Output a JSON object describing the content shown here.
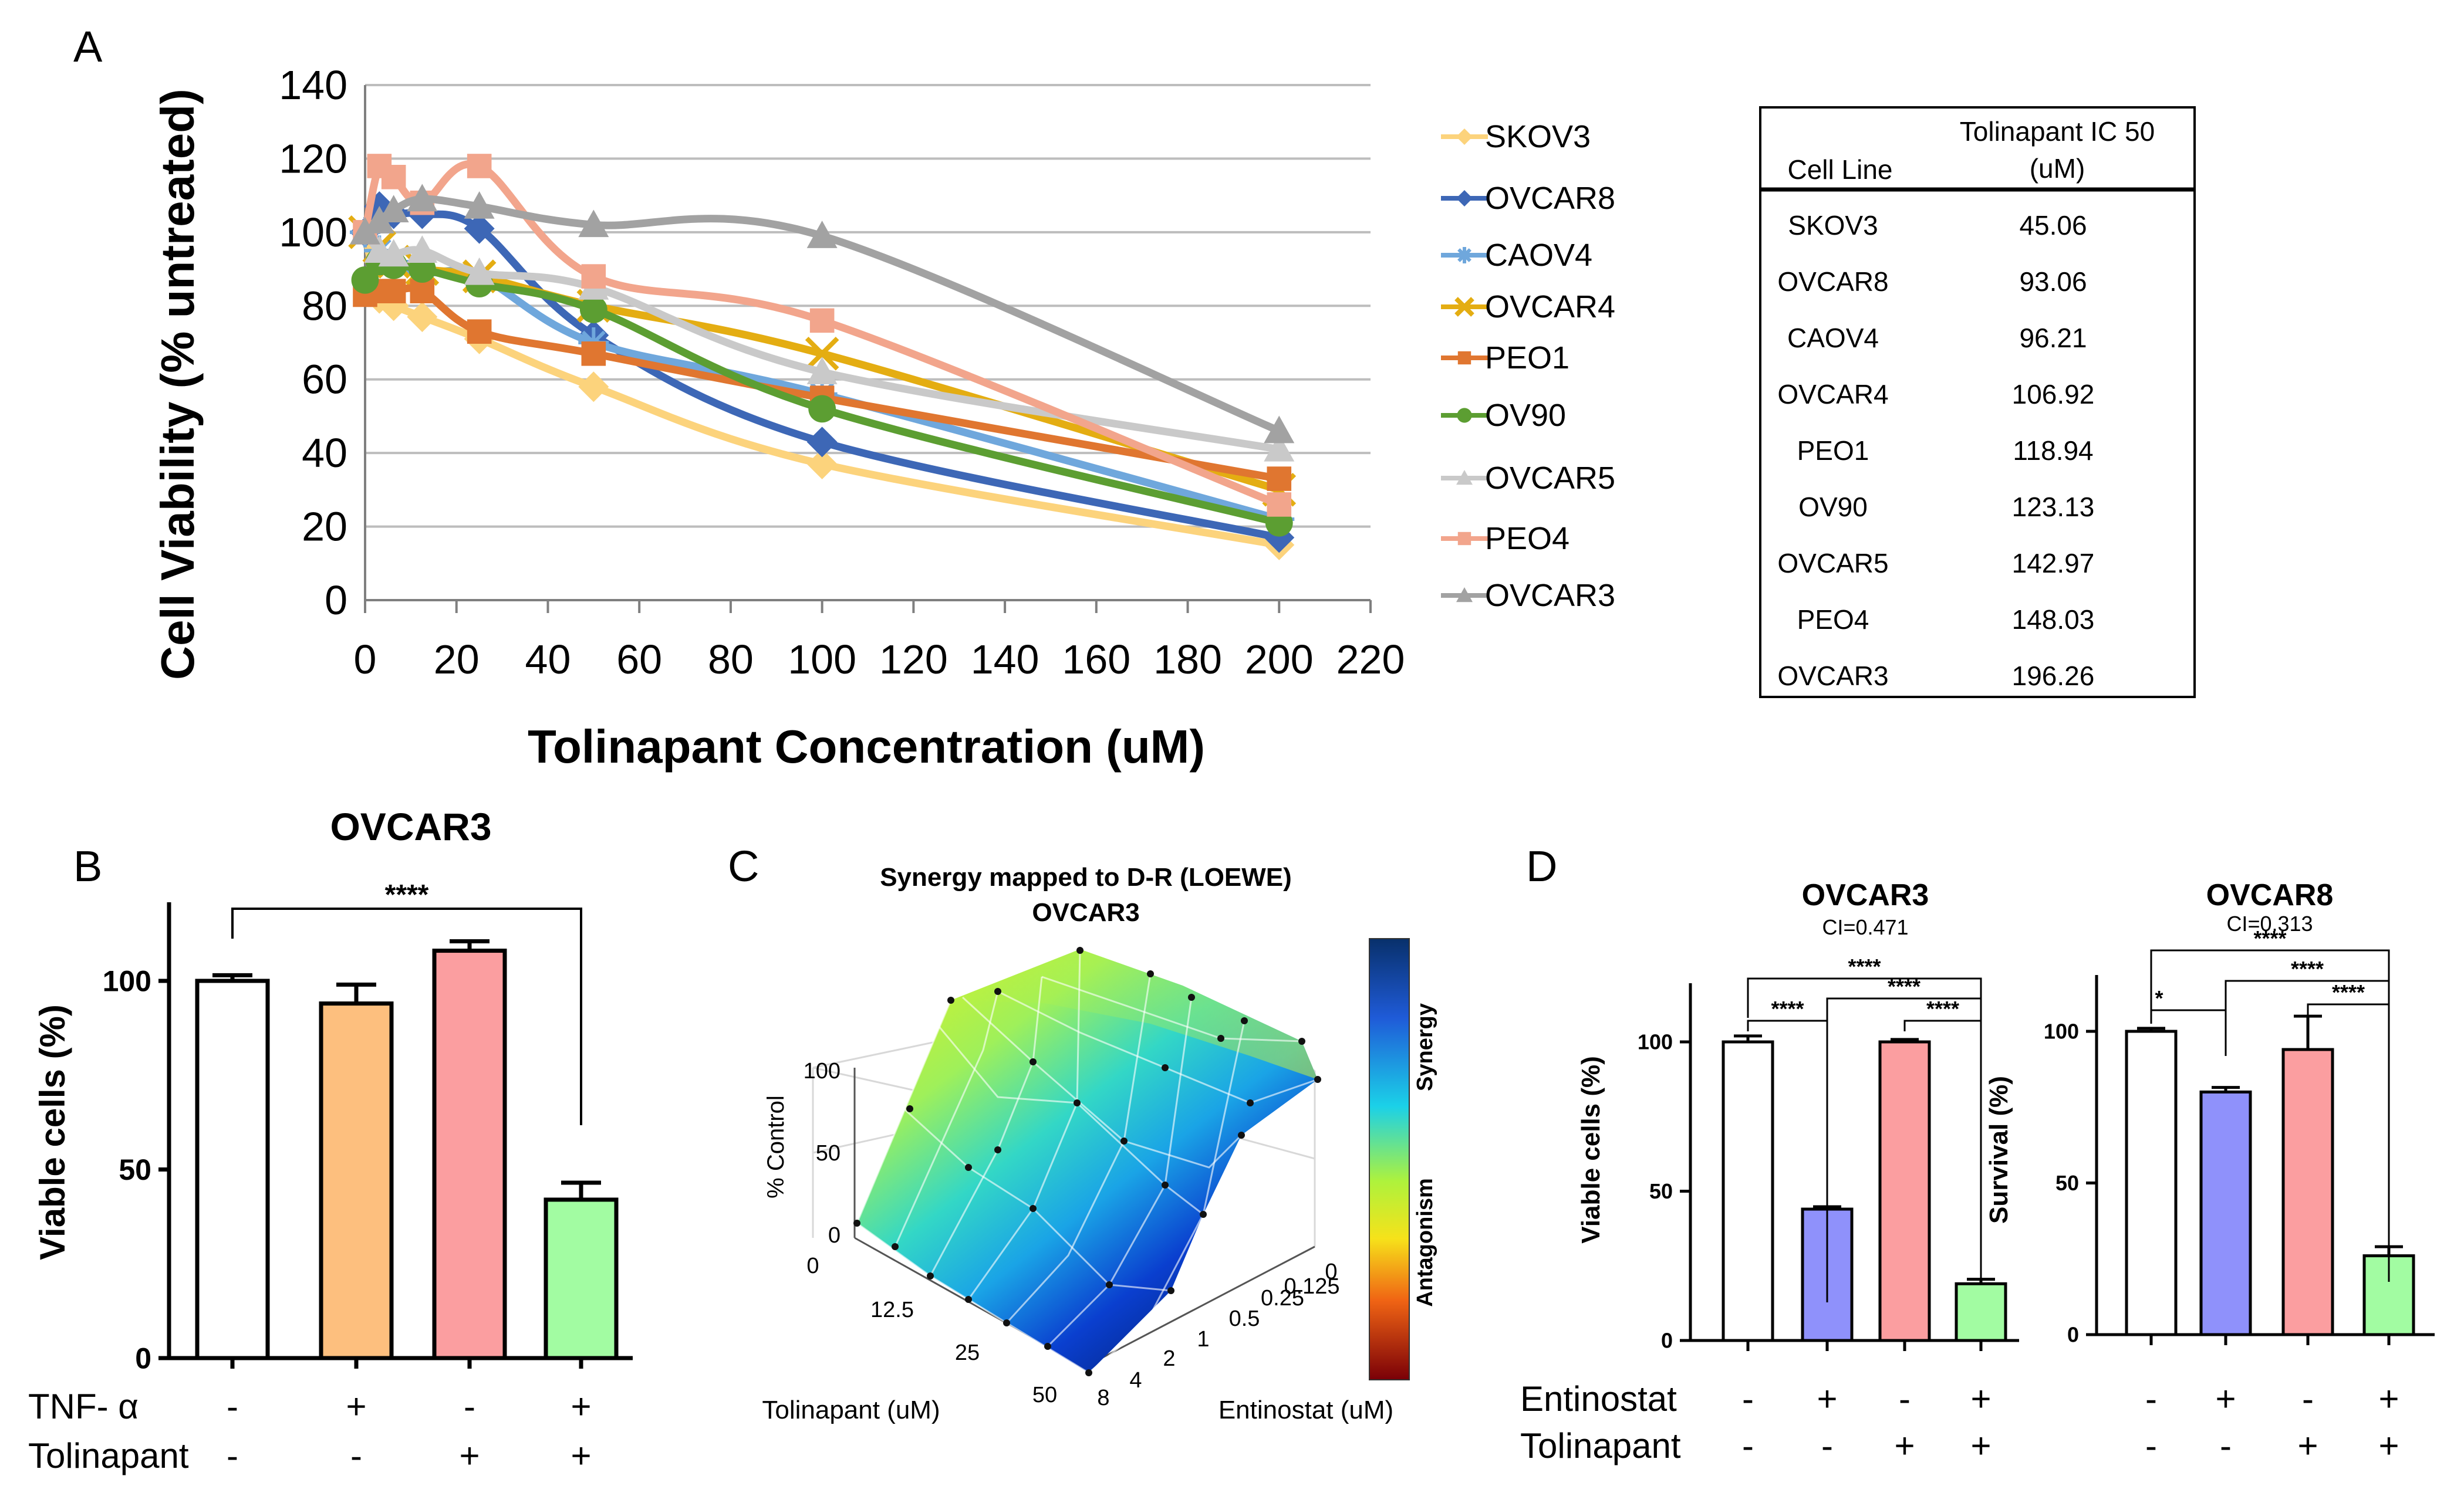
{
  "panel_labels": {
    "a": "A",
    "b": "B",
    "c": "C",
    "d": "D"
  },
  "colors": {
    "SKOV3": "#fcd37c",
    "OVCAR8": "#3d67b6",
    "CAOV4": "#6fa7dc",
    "OVCAR4": "#e4ad12",
    "PEO1": "#e07630",
    "OV90": "#5c9e32",
    "OVCAR5": "#c9c9c9",
    "PEO4": "#f2a58c",
    "OVCAR3": "#a2a2a2",
    "bar_white": "#ffffff",
    "bar_orange": "#fdbf7e",
    "bar_red": "#fb9ea0",
    "bar_green": "#a2fca2",
    "bar_blue": "#8f91fb"
  },
  "chart_data": [
    {
      "id": "A",
      "type": "line",
      "xlabel": "Tolinapant Concentration (uM)",
      "ylabel": "Cell Viability (% untreated)",
      "xlim": [
        0,
        220
      ],
      "ylim": [
        0,
        140
      ],
      "xticks": [
        0,
        20,
        40,
        60,
        80,
        100,
        120,
        140,
        160,
        180,
        200,
        220
      ],
      "yticks": [
        0,
        20,
        40,
        60,
        80,
        100,
        120,
        140
      ],
      "grid": true,
      "x": [
        0,
        3.125,
        6.25,
        12.5,
        25,
        50,
        100,
        200
      ],
      "series": [
        {
          "name": "SKOV3",
          "marker": "diamond",
          "values": [
            100,
            82,
            80,
            77,
            71,
            58,
            37,
            15
          ]
        },
        {
          "name": "OVCAR8",
          "marker": "diamond",
          "values": [
            100,
            107,
            105,
            105,
            101,
            72,
            43,
            17
          ]
        },
        {
          "name": "CAOV4",
          "marker": "star",
          "values": [
            100,
            95,
            92,
            89,
            88,
            70,
            56,
            22
          ]
        },
        {
          "name": "OVCAR4",
          "marker": "x",
          "values": [
            100,
            96,
            92,
            90,
            88,
            80,
            67,
            30
          ]
        },
        {
          "name": "PEO1",
          "marker": "square",
          "values": [
            83,
            84,
            84,
            84,
            73,
            67,
            55,
            33
          ]
        },
        {
          "name": "OV90",
          "marker": "circle",
          "values": [
            87,
            92,
            91,
            90,
            86,
            79,
            52,
            21
          ]
        },
        {
          "name": "OVCAR5",
          "marker": "triangle",
          "values": [
            100,
            95,
            94,
            95,
            89,
            85,
            62,
            41
          ]
        },
        {
          "name": "PEO4",
          "marker": "square",
          "values": [
            100,
            118,
            115,
            108,
            118,
            88,
            76,
            26
          ]
        },
        {
          "name": "OVCAR3",
          "marker": "triangle",
          "values": [
            100,
            103,
            106,
            109,
            107,
            102,
            99,
            46
          ]
        }
      ],
      "table": {
        "headers": [
          "Cell Line",
          "Tolinapant IC 50",
          "(uM)"
        ],
        "rows": [
          [
            "SKOV3",
            "45.06"
          ],
          [
            "OVCAR8",
            "93.06"
          ],
          [
            "CAOV4",
            "96.21"
          ],
          [
            "OVCAR4",
            "106.92"
          ],
          [
            "PEO1",
            "118.94"
          ],
          [
            "OV90",
            "123.13"
          ],
          [
            "OVCAR5",
            "142.97"
          ],
          [
            "PEO4",
            "148.03"
          ],
          [
            "OVCAR3",
            "196.26"
          ]
        ]
      }
    },
    {
      "id": "B",
      "type": "bar",
      "title": "OVCAR3",
      "ylabel": "Viable cells (%)",
      "ylim": [
        0,
        120
      ],
      "yticks": [
        0,
        50,
        100
      ],
      "values": [
        100,
        94,
        108,
        42
      ],
      "errors": [
        1.5,
        5,
        2.5,
        4.5
      ],
      "fills": [
        "bar_white",
        "bar_orange",
        "bar_red",
        "bar_green"
      ],
      "conditions": [
        {
          "label": "TNF- α",
          "values": [
            "-",
            "+",
            "-",
            "+"
          ]
        },
        {
          "label": "Tolinapant",
          "values": [
            "-",
            "-",
            "+",
            "+"
          ]
        }
      ],
      "significance": [
        {
          "from": 0,
          "to": 3,
          "label": "****"
        }
      ]
    },
    {
      "id": "C",
      "type": "surface",
      "title": "Synergy mapped to D-R (LOEWE)",
      "subtitle": "OVCAR3",
      "zlabel": "% Control",
      "zticks": [
        "0",
        "50",
        "100"
      ],
      "xlabel": "Tolinapant (uM)",
      "xticks": [
        "0",
        "12.5",
        "25",
        "50"
      ],
      "ylabel": "Entinostat (uM)",
      "yticks": [
        "0",
        "0.125",
        "0.25",
        "0.5",
        "1",
        "2",
        "4",
        "8"
      ],
      "colorbar_top": "Synergy",
      "colorbar_bottom": "Antagonism"
    },
    {
      "id": "D1",
      "type": "bar",
      "title": "OVCAR3",
      "subtitle": "CI=0.471",
      "ylabel": "Viable cells (%)",
      "ylim": [
        0,
        120
      ],
      "yticks": [
        0,
        50,
        100
      ],
      "values": [
        100,
        44,
        100,
        19
      ],
      "errors": [
        2,
        0.8,
        0.8,
        1.5
      ],
      "fills": [
        "bar_white",
        "bar_blue",
        "bar_red",
        "bar_green"
      ],
      "conditions": [
        {
          "label": "Entinostat",
          "values": [
            "-",
            "+",
            "-",
            "+"
          ]
        },
        {
          "label": "Tolinapant",
          "values": [
            "-",
            "-",
            "+",
            "+"
          ]
        }
      ],
      "significance": [
        {
          "from": 0,
          "to": 1,
          "label": "****"
        },
        {
          "from": 1,
          "to": 3,
          "label": "****"
        },
        {
          "from": 2,
          "to": 3,
          "label": "****"
        },
        {
          "from": 0,
          "to": 3,
          "label": "****"
        }
      ]
    },
    {
      "id": "D2",
      "type": "bar",
      "title": "OVCAR8",
      "subtitle": "CI=0.313",
      "ylabel": "Survival (%)",
      "ylim": [
        0,
        120
      ],
      "yticks": [
        0,
        50,
        100
      ],
      "values": [
        100,
        80,
        94,
        26
      ],
      "errors": [
        1,
        1.5,
        11,
        3
      ],
      "fills": [
        "bar_white",
        "bar_blue",
        "bar_red",
        "bar_green"
      ],
      "conditions": [
        {
          "label": "",
          "values": [
            "-",
            "+",
            "-",
            "+"
          ]
        },
        {
          "label": "",
          "values": [
            "-",
            "-",
            "+",
            "+"
          ]
        }
      ],
      "significance": [
        {
          "from": 0,
          "to": 1,
          "label": "*"
        },
        {
          "from": 1,
          "to": 3,
          "label": "****"
        },
        {
          "from": 2,
          "to": 3,
          "label": "****"
        },
        {
          "from": 0,
          "to": 3,
          "label": "****"
        }
      ]
    }
  ]
}
